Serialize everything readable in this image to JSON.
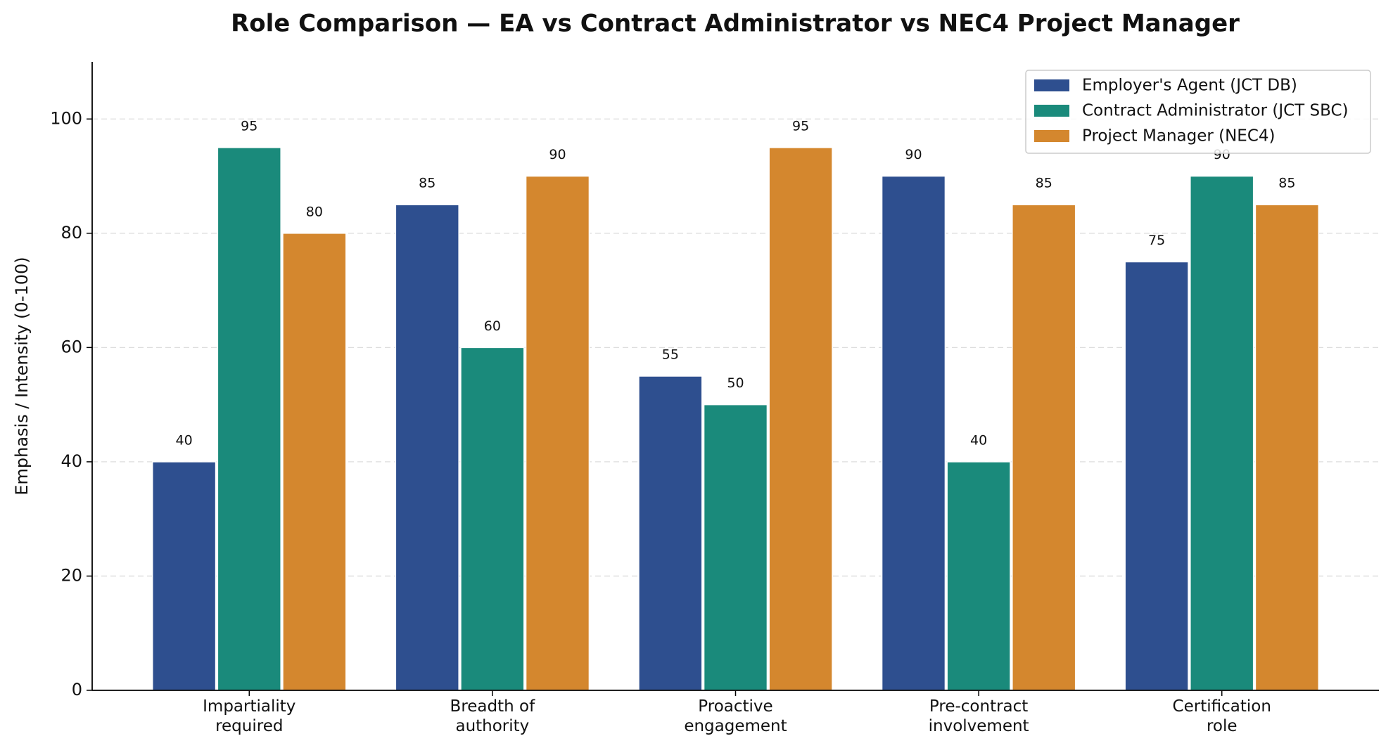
{
  "chart_data": {
    "type": "bar",
    "title": "Role Comparison — EA vs Contract Administrator vs NEC4 Project Manager",
    "ylabel": "Emphasis / Intensity (0-100)",
    "categories": [
      "Impartiality\nrequired",
      "Breadth of\nauthority",
      "Proactive\nengagement",
      "Pre-contract\ninvolvement",
      "Certification\nrole"
    ],
    "series": [
      {
        "name": "Employer's Agent (JCT DB)",
        "color": "#2e4f8f",
        "values": [
          40,
          85,
          55,
          90,
          75
        ]
      },
      {
        "name": "Contract Administrator (JCT SBC)",
        "color": "#1a8a7b",
        "values": [
          95,
          60,
          50,
          40,
          90
        ]
      },
      {
        "name": "Project Manager (NEC4)",
        "color": "#d4872e",
        "values": [
          80,
          90,
          95,
          85,
          85
        ]
      }
    ],
    "ylim": [
      0,
      110
    ],
    "yticks": [
      0,
      20,
      40,
      60,
      80,
      100
    ],
    "grid": true,
    "legend": "upper right"
  }
}
